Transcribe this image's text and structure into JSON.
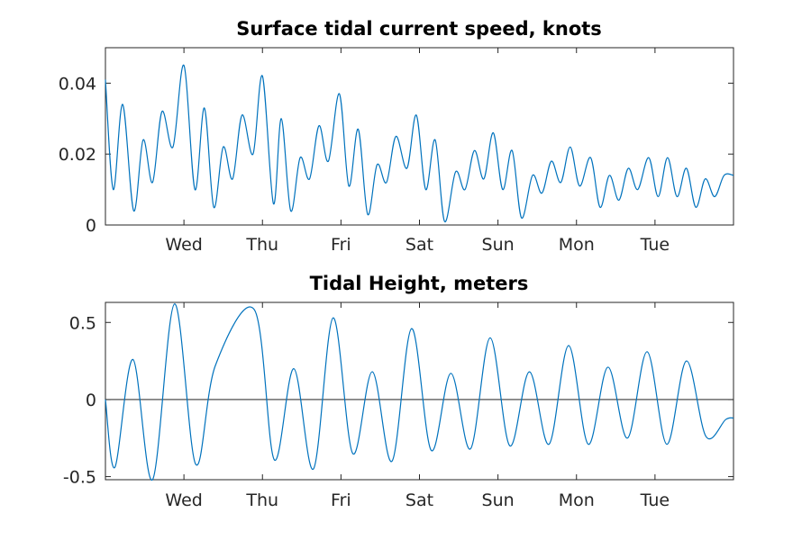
{
  "chart_data": [
    {
      "type": "line",
      "title": "Surface tidal current speed, knots",
      "xlabel": "",
      "ylabel": "",
      "ylim": [
        0,
        0.05
      ],
      "yticks": [
        0,
        0.02,
        0.04
      ],
      "ytick_labels": [
        "0",
        "0.02",
        "0.04"
      ],
      "xlim": [
        0,
        8
      ],
      "xticks": [
        1,
        2,
        3,
        4,
        5,
        6,
        7
      ],
      "xtick_labels": [
        "Wed",
        "Thu",
        "Fri",
        "Sat",
        "Sun",
        "Mon",
        "Tue"
      ],
      "grid": false,
      "color": "#0072BD",
      "series": [
        {
          "x": [
            0.0,
            0.1,
            0.22,
            0.36,
            0.48,
            0.6,
            0.72,
            0.86,
            1.0,
            1.14,
            1.26,
            1.38,
            1.5,
            1.62,
            1.74,
            1.88,
            2.0,
            2.14,
            2.24,
            2.36,
            2.48,
            2.6,
            2.72,
            2.84,
            2.98,
            3.1,
            3.22,
            3.34,
            3.46,
            3.58,
            3.7,
            3.84,
            3.96,
            4.08,
            4.2,
            4.32,
            4.46,
            4.58,
            4.7,
            4.82,
            4.94,
            5.06,
            5.18,
            5.3,
            5.44,
            5.56,
            5.68,
            5.8,
            5.92,
            6.04,
            6.18,
            6.3,
            6.42,
            6.54,
            6.66,
            6.78,
            6.92,
            7.04,
            7.16,
            7.28,
            7.4,
            7.52,
            7.64,
            7.76,
            7.88,
            8.0
          ],
          "y": [
            0.041,
            0.01,
            0.034,
            0.004,
            0.024,
            0.012,
            0.032,
            0.022,
            0.045,
            0.01,
            0.033,
            0.005,
            0.022,
            0.013,
            0.031,
            0.02,
            0.042,
            0.006,
            0.03,
            0.004,
            0.019,
            0.013,
            0.028,
            0.018,
            0.037,
            0.011,
            0.027,
            0.003,
            0.017,
            0.012,
            0.025,
            0.016,
            0.031,
            0.01,
            0.024,
            0.001,
            0.015,
            0.01,
            0.021,
            0.013,
            0.026,
            0.01,
            0.021,
            0.002,
            0.014,
            0.009,
            0.018,
            0.012,
            0.022,
            0.011,
            0.019,
            0.005,
            0.014,
            0.007,
            0.016,
            0.01,
            0.019,
            0.008,
            0.019,
            0.008,
            0.016,
            0.005,
            0.013,
            0.008,
            0.014,
            0.014
          ]
        }
      ]
    },
    {
      "type": "line",
      "title": "Tidal Height, meters",
      "xlabel": "",
      "ylabel": "",
      "ylim": [
        -0.52,
        0.63
      ],
      "yticks": [
        -0.5,
        0,
        0.5
      ],
      "ytick_labels": [
        "-0.5",
        "0",
        "0.5"
      ],
      "xlim": [
        0,
        8
      ],
      "xticks": [
        1,
        2,
        3,
        4,
        5,
        6,
        7
      ],
      "xtick_labels": [
        "Wed",
        "Thu",
        "Fri",
        "Sat",
        "Sun",
        "Mon",
        "Tue"
      ],
      "grid": false,
      "zero_line": true,
      "color": "#0072BD",
      "series": [
        {
          "x": [
            0.0,
            0.12,
            0.35,
            0.6,
            0.88,
            1.15,
            1.4,
            1.9,
            2.15,
            2.4,
            2.65,
            2.9,
            3.15,
            3.4,
            3.65,
            3.9,
            4.15,
            4.4,
            4.65,
            4.9,
            5.15,
            5.4,
            5.65,
            5.9,
            6.15,
            6.4,
            6.65,
            6.9,
            7.15,
            7.4,
            7.65,
            7.9,
            8.0
          ],
          "y": [
            0.0,
            -0.44,
            0.26,
            -0.52,
            0.62,
            -0.42,
            0.22,
            0.58,
            -0.39,
            0.2,
            -0.45,
            0.53,
            -0.35,
            0.18,
            -0.4,
            0.46,
            -0.33,
            0.17,
            -0.32,
            0.4,
            -0.3,
            0.18,
            -0.29,
            0.35,
            -0.29,
            0.21,
            -0.25,
            0.31,
            -0.29,
            0.25,
            -0.24,
            -0.13,
            -0.12
          ]
        }
      ]
    }
  ]
}
